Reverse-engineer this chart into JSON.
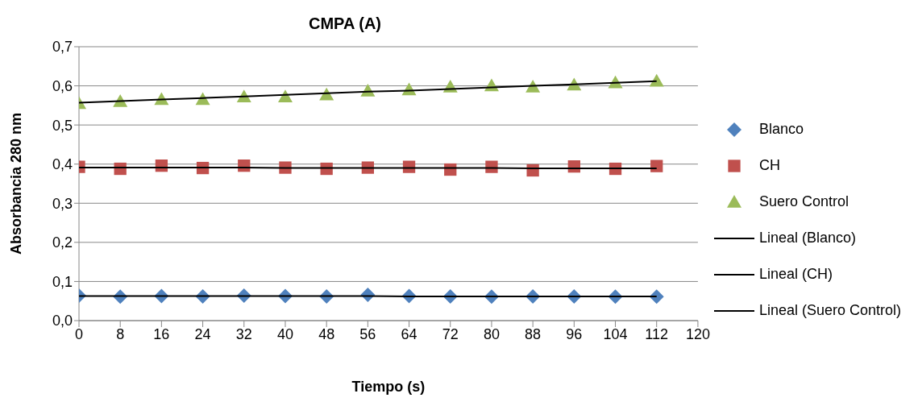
{
  "chart_data": {
    "type": "scatter",
    "title": "CMPA (A)",
    "xlabel": "Tiempo (s)",
    "ylabel": "Absorbancia 280 nm",
    "x": [
      0,
      8,
      16,
      24,
      32,
      40,
      48,
      56,
      64,
      72,
      80,
      88,
      96,
      104,
      112
    ],
    "series": [
      {
        "name": "Blanco",
        "color": "#4f81bd",
        "marker": "diamond",
        "values": [
          0.064,
          0.061,
          0.063,
          0.062,
          0.064,
          0.063,
          0.062,
          0.066,
          0.063,
          0.062,
          0.061,
          0.062,
          0.062,
          0.061,
          0.061
        ]
      },
      {
        "name": "CH",
        "color": "#c0504d",
        "marker": "square",
        "values": [
          0.393,
          0.388,
          0.396,
          0.39,
          0.396,
          0.391,
          0.388,
          0.391,
          0.393,
          0.386,
          0.393,
          0.384,
          0.394,
          0.388,
          0.395
        ]
      },
      {
        "name": "Suero Control",
        "color": "#9bbb59",
        "marker": "triangle",
        "values": [
          0.555,
          0.56,
          0.565,
          0.565,
          0.572,
          0.572,
          0.577,
          0.587,
          0.59,
          0.597,
          0.6,
          0.597,
          0.602,
          0.608,
          0.612
        ]
      },
      {
        "name": "Lineal (Blanco)",
        "type": "line",
        "color": "#000000",
        "marker": "none",
        "values": [
          0.063,
          0.063,
          0.063,
          0.063,
          0.063,
          0.063,
          0.063,
          0.063,
          0.062,
          0.062,
          0.062,
          0.062,
          0.062,
          0.062,
          0.062
        ]
      },
      {
        "name": "Lineal (CH)",
        "type": "line",
        "color": "#000000",
        "marker": "none",
        "values": [
          0.391,
          0.391,
          0.391,
          0.391,
          0.391,
          0.39,
          0.39,
          0.39,
          0.39,
          0.39,
          0.39,
          0.389,
          0.389,
          0.389,
          0.389
        ]
      },
      {
        "name": "Lineal (Suero Control)",
        "type": "line",
        "color": "#000000",
        "marker": "none",
        "values": [
          0.557,
          0.561,
          0.565,
          0.569,
          0.573,
          0.577,
          0.581,
          0.585,
          0.588,
          0.592,
          0.596,
          0.6,
          0.604,
          0.608,
          0.612
        ]
      }
    ],
    "xlim": [
      0,
      120
    ],
    "xticks": [
      0,
      8,
      16,
      24,
      32,
      40,
      48,
      56,
      64,
      72,
      80,
      88,
      96,
      104,
      112,
      120
    ],
    "ylim": [
      0,
      0.7
    ],
    "yticks": [
      {
        "value": 0,
        "label": "0,0"
      },
      {
        "value": 0.1,
        "label": "0,1"
      },
      {
        "value": 0.2,
        "label": "0,2"
      },
      {
        "value": 0.3,
        "label": "0,3"
      },
      {
        "value": 0.4,
        "label": "0,4"
      },
      {
        "value": 0.5,
        "label": "0,5"
      },
      {
        "value": 0.6,
        "label": "0,6"
      },
      {
        "value": 0.7,
        "label": "0,7"
      }
    ],
    "grid": "y",
    "legend": "right"
  }
}
